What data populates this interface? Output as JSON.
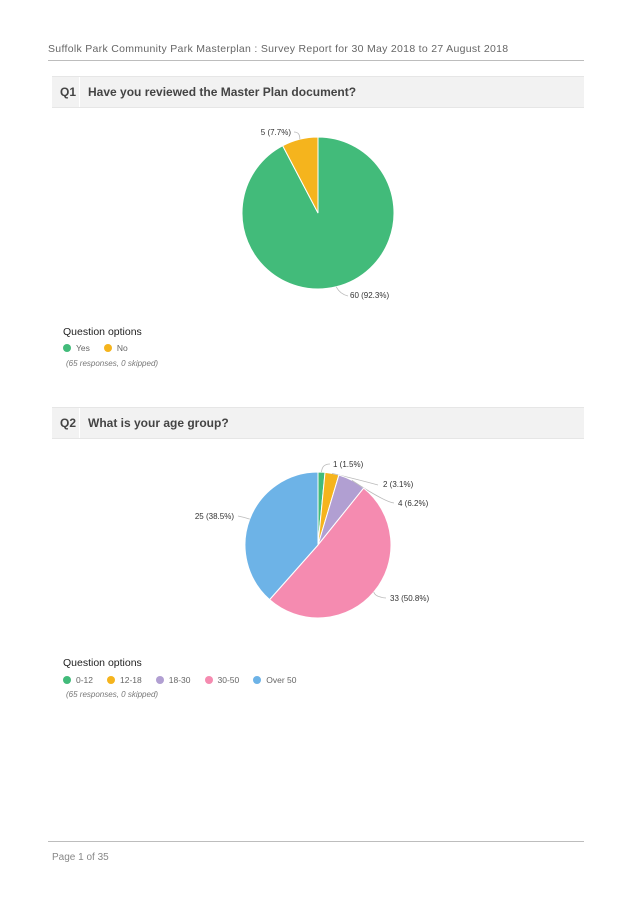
{
  "header": {
    "title": "Suffolk Park Community Park Masterplan : Survey Report for 30 May 2018 to 27 August 2018"
  },
  "questions": [
    {
      "number": "Q1",
      "text": "Have you reviewed the Master Plan document?",
      "legend_title": "Question options",
      "responses_text": "(65 responses, 0 skipped)"
    },
    {
      "number": "Q2",
      "text": "What is your age group?",
      "legend_title": "Question options",
      "responses_text": "(65 responses, 0 skipped)"
    }
  ],
  "chart_data": [
    {
      "type": "pie",
      "categories": [
        "Yes",
        "No"
      ],
      "values": [
        60,
        5
      ],
      "data_labels": [
        "60 (92.3%)",
        "5 (7.7%)"
      ],
      "colors": [
        "#42bb7a",
        "#f5b41d"
      ],
      "legend_placement": "bottom-left"
    },
    {
      "type": "pie",
      "categories": [
        "0-12",
        "12-18",
        "18-30",
        "30-50",
        "Over 50"
      ],
      "values": [
        1,
        2,
        4,
        33,
        25
      ],
      "data_labels": [
        "1 (1.5%)",
        "2 (3.1%)",
        "4 (6.2%)",
        "33 (50.8%)",
        "25 (38.5%)"
      ],
      "colors": [
        "#42bb7a",
        "#f5b41d",
        "#b19fd2",
        "#f58bb0",
        "#6db3e7"
      ],
      "legend_placement": "bottom-left"
    }
  ],
  "footer": {
    "page_text": "Page 1 of 35"
  }
}
